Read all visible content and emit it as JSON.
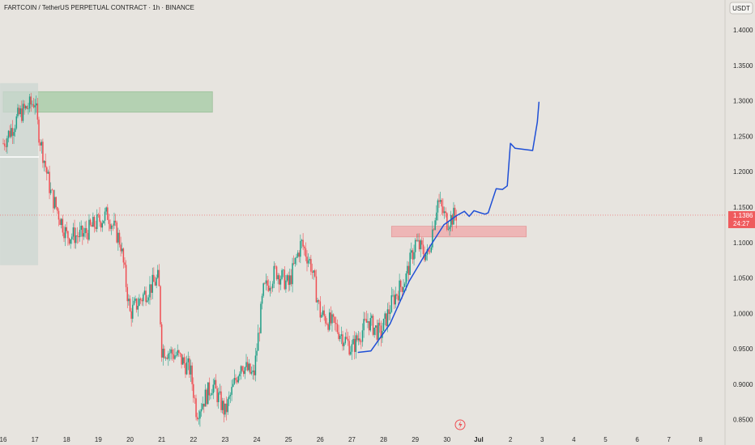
{
  "header": {
    "title": "FARTCOIN / TetherUS PERPETUAL CONTRACT · 1h · BINANCE",
    "currency_badge": "USDT"
  },
  "price_tag": {
    "price": "1.1386",
    "countdown": "24:27",
    "value": 1.1386
  },
  "colors": {
    "background": "#e7e4df",
    "up": "#1f9e86",
    "down": "#ef4d52",
    "drawing": "#1f4fd6",
    "resistance_zone": "#b4d1b2",
    "support_zone": "#eeb6b6",
    "start_box": "#ccd7d1",
    "price_tag": "#ef5b5d"
  },
  "chart_data": {
    "type": "candlestick",
    "title": "FARTCOIN / TetherUS PERPETUAL CONTRACT · 1h · BINANCE",
    "ylim": [
      0.845,
      1.415
    ],
    "y_ticks": [
      {
        "value": 1.4,
        "label": "1.4000"
      },
      {
        "value": 1.35,
        "label": "1.3500"
      },
      {
        "value": 1.3,
        "label": "1.3000"
      },
      {
        "value": 1.25,
        "label": "1.2500"
      },
      {
        "value": 1.2,
        "label": "1.2000"
      },
      {
        "value": 1.15,
        "label": "1.1500"
      },
      {
        "value": 1.1,
        "label": "1.1000"
      },
      {
        "value": 1.05,
        "label": "1.0500"
      },
      {
        "value": 1.0,
        "label": "1.0000"
      },
      {
        "value": 0.95,
        "label": "0.9500"
      },
      {
        "value": 0.9,
        "label": "0.9000"
      },
      {
        "value": 0.85,
        "label": "0.8500"
      }
    ],
    "x_ticks": [
      {
        "day": 16,
        "label": "16"
      },
      {
        "day": 17,
        "label": "17"
      },
      {
        "day": 18,
        "label": "18"
      },
      {
        "day": 19,
        "label": "19"
      },
      {
        "day": 20,
        "label": "20"
      },
      {
        "day": 21,
        "label": "21"
      },
      {
        "day": 22,
        "label": "22"
      },
      {
        "day": 23,
        "label": "23"
      },
      {
        "day": 24,
        "label": "24"
      },
      {
        "day": 25,
        "label": "25"
      },
      {
        "day": 26,
        "label": "26"
      },
      {
        "day": 27,
        "label": "27"
      },
      {
        "day": 28,
        "label": "28"
      },
      {
        "day": 29,
        "label": "29"
      },
      {
        "day": 30,
        "label": "30"
      },
      {
        "day": 31,
        "label": "Jul"
      },
      {
        "day": 32,
        "label": "2"
      },
      {
        "day": 33,
        "label": "3"
      },
      {
        "day": 34,
        "label": "4"
      },
      {
        "day": 35,
        "label": "5"
      },
      {
        "day": 36,
        "label": "6"
      },
      {
        "day": 37,
        "label": "7"
      },
      {
        "day": 38,
        "label": "8"
      }
    ],
    "x_range": [
      15.9,
      38.9
    ],
    "key_points": [
      {
        "day": 16.0,
        "price": 1.24
      },
      {
        "day": 16.5,
        "price": 1.28
      },
      {
        "day": 17.0,
        "price": 1.3
      },
      {
        "day": 17.1,
        "price": 1.26
      },
      {
        "day": 17.5,
        "price": 1.17
      },
      {
        "day": 18.0,
        "price": 1.11
      },
      {
        "day": 18.5,
        "price": 1.11
      },
      {
        "day": 19.0,
        "price": 1.13
      },
      {
        "day": 19.3,
        "price": 1.14
      },
      {
        "day": 19.7,
        "price": 1.1
      },
      {
        "day": 20.0,
        "price": 1.0
      },
      {
        "day": 20.5,
        "price": 1.03
      },
      {
        "day": 20.9,
        "price": 1.05
      },
      {
        "day": 21.0,
        "price": 0.95
      },
      {
        "day": 21.5,
        "price": 0.94
      },
      {
        "day": 21.9,
        "price": 0.92
      },
      {
        "day": 22.1,
        "price": 0.86
      },
      {
        "day": 22.6,
        "price": 0.9
      },
      {
        "day": 23.0,
        "price": 0.86
      },
      {
        "day": 23.5,
        "price": 0.93
      },
      {
        "day": 23.9,
        "price": 0.91
      },
      {
        "day": 24.2,
        "price": 1.03
      },
      {
        "day": 24.6,
        "price": 1.06
      },
      {
        "day": 25.0,
        "price": 1.04
      },
      {
        "day": 25.4,
        "price": 1.1
      },
      {
        "day": 25.7,
        "price": 1.07
      },
      {
        "day": 26.0,
        "price": 1.0
      },
      {
        "day": 26.5,
        "price": 0.98
      },
      {
        "day": 27.0,
        "price": 0.95
      },
      {
        "day": 27.5,
        "price": 0.99
      },
      {
        "day": 27.9,
        "price": 0.97
      },
      {
        "day": 28.3,
        "price": 1.02
      },
      {
        "day": 28.7,
        "price": 1.05
      },
      {
        "day": 29.0,
        "price": 1.1
      },
      {
        "day": 29.4,
        "price": 1.08
      },
      {
        "day": 29.7,
        "price": 1.16
      },
      {
        "day": 30.0,
        "price": 1.13
      },
      {
        "day": 30.3,
        "price": 1.14
      }
    ],
    "zones": [
      {
        "name": "resistance",
        "x_start": 16.0,
        "x_end": 22.6,
        "y_low": 1.284,
        "y_high": 1.313
      },
      {
        "name": "support",
        "x_start": 28.25,
        "x_end": 32.5,
        "y_low": 1.108,
        "y_high": 1.123
      },
      {
        "name": "start-box",
        "x_start": 15.9,
        "x_end": 17.1,
        "y_low": 1.068,
        "y_high": 1.325
      }
    ],
    "projection": [
      {
        "day": 27.2,
        "price": 0.945
      },
      {
        "day": 27.6,
        "price": 0.947
      },
      {
        "day": 28.2,
        "price": 0.985
      },
      {
        "day": 28.8,
        "price": 1.045
      },
      {
        "day": 29.4,
        "price": 1.09
      },
      {
        "day": 29.9,
        "price": 1.125
      },
      {
        "day": 30.3,
        "price": 1.138
      },
      {
        "day": 30.55,
        "price": 1.144
      },
      {
        "day": 30.7,
        "price": 1.137
      },
      {
        "day": 30.85,
        "price": 1.145
      },
      {
        "day": 31.05,
        "price": 1.142
      },
      {
        "day": 31.2,
        "price": 1.14
      },
      {
        "day": 31.3,
        "price": 1.142
      },
      {
        "day": 31.55,
        "price": 1.176
      },
      {
        "day": 31.75,
        "price": 1.175
      },
      {
        "day": 31.9,
        "price": 1.18
      },
      {
        "day": 32.0,
        "price": 1.24
      },
      {
        "day": 32.15,
        "price": 1.233
      },
      {
        "day": 32.7,
        "price": 1.23
      },
      {
        "day": 32.85,
        "price": 1.27
      },
      {
        "day": 32.9,
        "price": 1.298
      }
    ]
  }
}
